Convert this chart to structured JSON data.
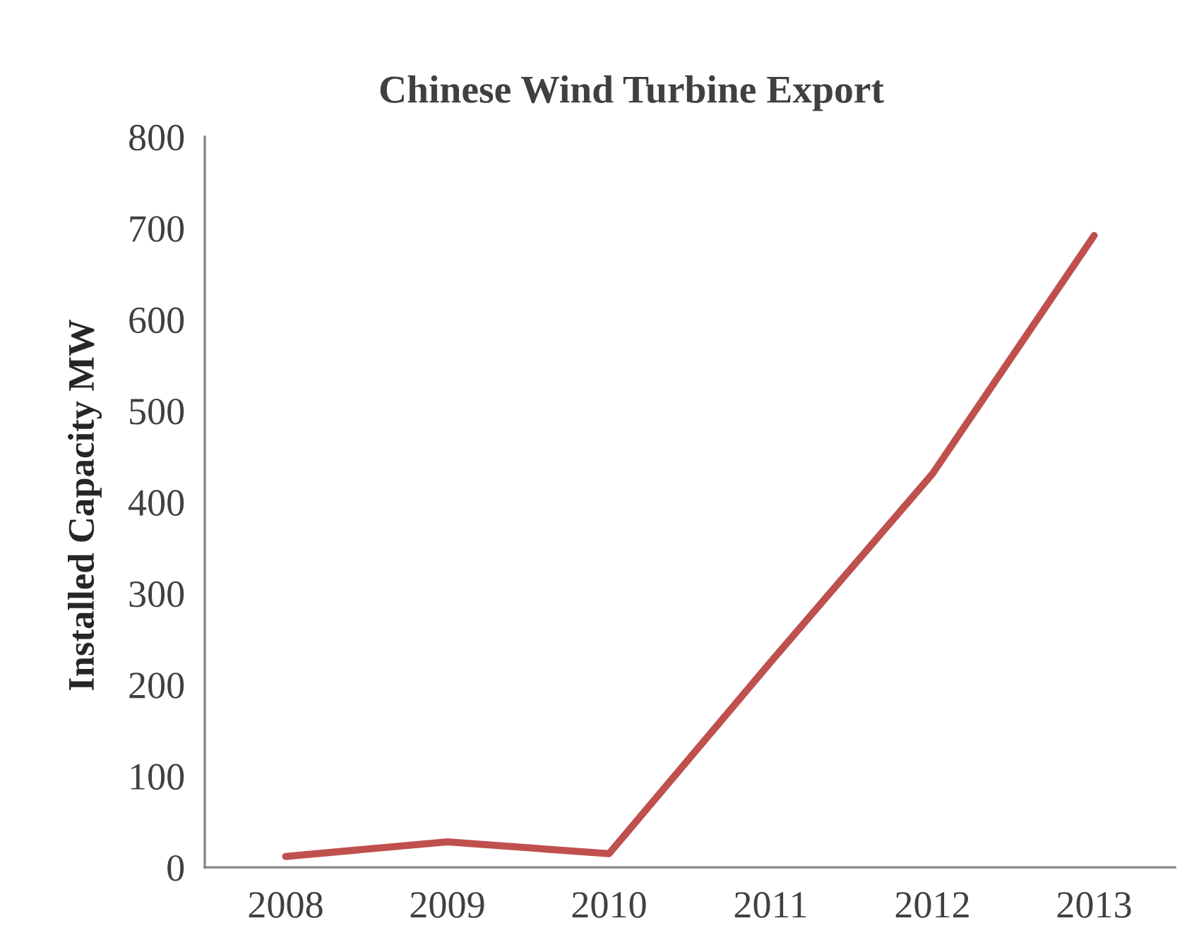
{
  "chart_data": {
    "type": "line",
    "title": "Chinese Wind Turbine Export",
    "ylabel": "Installed Capacity MW",
    "categories": [
      "2008",
      "2009",
      "2010",
      "2011",
      "2012",
      "2013"
    ],
    "series": [
      {
        "color": "#c0504d",
        "values": [
          12,
          28,
          15,
          225,
          431,
          692
        ]
      }
    ],
    "ylim": [
      0,
      800
    ],
    "yticks": [
      0,
      100,
      200,
      300,
      400,
      500,
      600,
      700,
      800
    ],
    "grid": false,
    "marker": "none",
    "line_style": "solid"
  }
}
